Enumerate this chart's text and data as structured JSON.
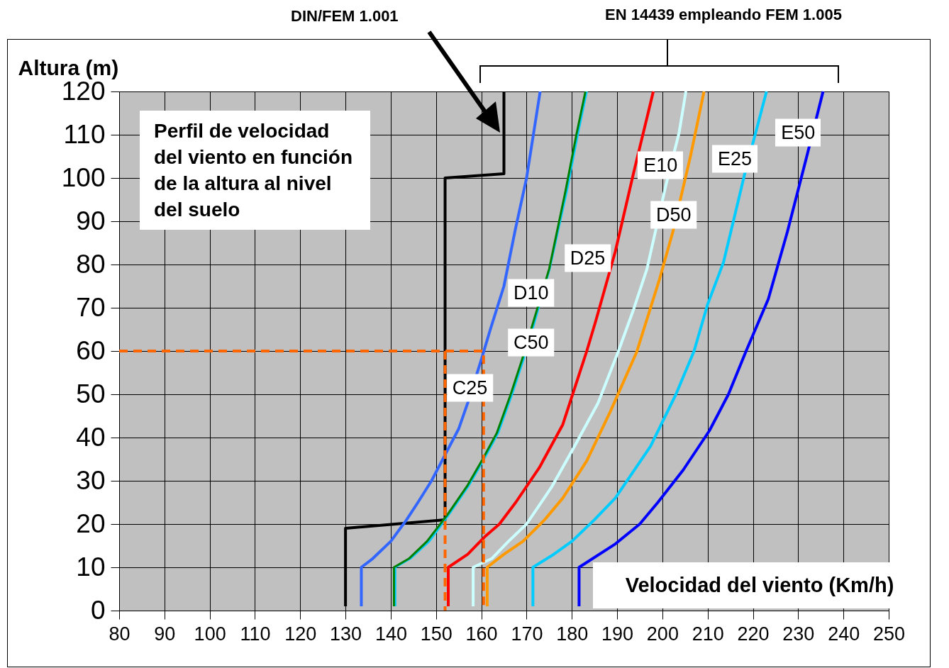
{
  "chart_data": {
    "type": "line",
    "xlabel": "Velocidad del viento (Km/h)",
    "ylabel": "Altura (m)",
    "annotations": [
      "Perfil de velocidad del viento en función de la altura al nivel del suelo",
      "EN 14439 empleando FEM 1.005",
      "DIN/FEM 1.001"
    ],
    "xlim": [
      80,
      250
    ],
    "ylim": [
      0,
      120
    ],
    "xticks": [
      80,
      90,
      100,
      110,
      120,
      130,
      140,
      150,
      160,
      170,
      180,
      190,
      200,
      210,
      220,
      230,
      240,
      250
    ],
    "yticks": [
      0,
      10,
      20,
      30,
      40,
      50,
      60,
      70,
      80,
      90,
      100,
      110,
      120
    ],
    "grid": true,
    "series": [
      {
        "color": "#000000",
        "x": [
          130,
          130,
          152,
          152,
          165,
          165
        ],
        "values": [
          1,
          19,
          21,
          100,
          101,
          120
        ]
      },
      {
        "name": "C25",
        "color": "#3366ff",
        "x": [
          133.5,
          133.5,
          136,
          140,
          143.5,
          146,
          149,
          152,
          155,
          157,
          160,
          162,
          165,
          167.5,
          170,
          171.5,
          173
        ],
        "values": [
          1,
          10,
          12,
          16,
          21,
          25,
          30,
          36,
          42,
          48,
          58,
          65,
          75,
          88,
          100,
          110,
          120
        ]
      },
      {
        "name": "D10",
        "color": "#00ccff",
        "x": [
          141,
          141,
          144.3,
          148.5,
          152.7,
          157.3,
          160.6,
          163.7,
          166.8,
          169.3,
          171.3,
          175.1,
          178.9,
          181.3,
          183.3
        ],
        "values": [
          1,
          10,
          12,
          16,
          22,
          29,
          35,
          41,
          50,
          58,
          65,
          79,
          97,
          110,
          120
        ]
      },
      {
        "name": "C50",
        "color": "#008000",
        "x": [
          140.7,
          140.7,
          144,
          148,
          152.4,
          157,
          160.3,
          163.4,
          166.5,
          169,
          171,
          175,
          178.6,
          181,
          183
        ],
        "values": [
          1,
          10,
          12,
          16,
          22,
          29,
          35,
          41,
          50,
          58,
          65,
          79,
          97,
          110,
          120
        ]
      },
      {
        "name": "D25",
        "color": "#ff0000",
        "x": [
          152.7,
          152.7,
          157,
          160.7,
          164,
          167.6,
          172.8,
          178,
          183.3,
          185.3,
          189.6,
          193.6,
          198
        ],
        "values": [
          1,
          10,
          13,
          17,
          20,
          25,
          33,
          43,
          60,
          67,
          83,
          101,
          120
        ]
      },
      {
        "name": "E10",
        "color": "#ccffff",
        "x": [
          158.2,
          158.2,
          162.3,
          166,
          170,
          175.5,
          180.6,
          185.8,
          190.3,
          193.6,
          196.6,
          200.7,
          203.7,
          205.2
        ],
        "values": [
          1,
          10,
          12,
          16,
          20,
          28.5,
          38,
          48,
          60,
          69.5,
          79,
          98,
          110.5,
          120
        ]
      },
      {
        "name": "D50",
        "color": "#ff9900",
        "x": [
          161.3,
          161.3,
          165,
          169.2,
          174,
          178,
          183.3,
          188.5,
          194.3,
          199.4,
          202.3,
          206.2,
          209.2
        ],
        "values": [
          1,
          10,
          13,
          16,
          21,
          26,
          34.6,
          46,
          59.7,
          76.7,
          87.5,
          105,
          120
        ]
      },
      {
        "name": "E25",
        "color": "#00ccff",
        "x": [
          171.4,
          171.4,
          176,
          180,
          185,
          189.6,
          197.4,
          203,
          207,
          210,
          213.5,
          218.2,
          221,
          223
        ],
        "values": [
          1,
          10,
          13,
          16,
          21,
          26,
          38,
          50,
          60,
          70.8,
          80.5,
          101,
          112,
          120
        ]
      },
      {
        "name": "E50",
        "color": "#0000ff",
        "x": [
          181.6,
          181.6,
          189.6,
          195,
          199,
          204.6,
          210.4,
          214.6,
          218.5,
          223.4,
          227.6,
          231.9,
          235.5
        ],
        "values": [
          1,
          10,
          15.4,
          20,
          25,
          32.5,
          41.6,
          50,
          60,
          72,
          87.5,
          105,
          120
        ]
      },
      {
        "color": "#ff6600",
        "line_style": "dashed",
        "x": [
          80,
          160.5,
          160.5
        ],
        "values": [
          60,
          60,
          0
        ]
      },
      {
        "color": "#ff6600",
        "line_style": "dashed",
        "x": [
          152,
          152
        ],
        "values": [
          60,
          0
        ]
      }
    ]
  }
}
